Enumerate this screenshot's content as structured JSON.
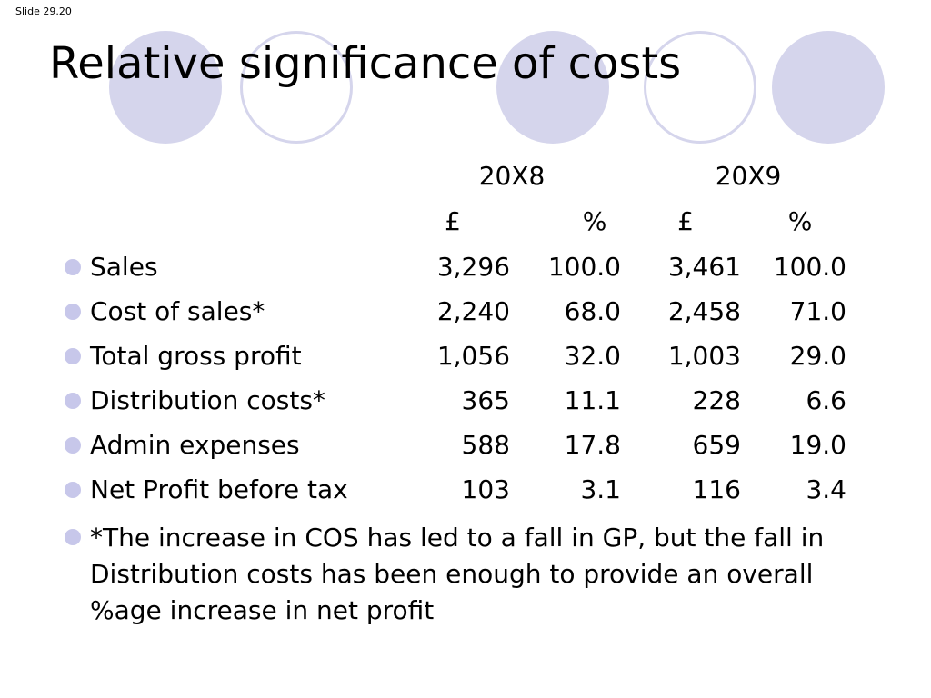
{
  "slide_label": "Slide 29.20",
  "title": "Relative significance of costs",
  "table": {
    "years": [
      "20X8",
      "20X9"
    ],
    "units": [
      "£",
      "%",
      "£",
      "%"
    ],
    "rows": [
      {
        "label": "Sales",
        "values": [
          "3,296",
          "100.0",
          "3,461",
          "100.0"
        ]
      },
      {
        "label": "Cost of sales*",
        "values": [
          "2,240",
          "68.0",
          "2,458",
          "71.0"
        ]
      },
      {
        "label": "Total gross profit",
        "values": [
          "1,056",
          "32.0",
          "1,003",
          "29.0"
        ]
      },
      {
        "label": "Distribution costs*",
        "values": [
          "365",
          "11.1",
          "228",
          "6.6"
        ]
      },
      {
        "label": "Admin expenses",
        "values": [
          "588",
          "17.8",
          "659",
          "19.0"
        ]
      },
      {
        "label": "Net Profit before tax",
        "values": [
          "103",
          "3.1",
          "116",
          "3.4"
        ]
      }
    ]
  },
  "note": "*The increase in COS has led to a fall in GP, but the fall in Distribution costs has been enough to provide an overall %age increase in net profit",
  "colors": {
    "decor_circle": "#d5d5ec",
    "bullet": "#c7c7ea"
  }
}
